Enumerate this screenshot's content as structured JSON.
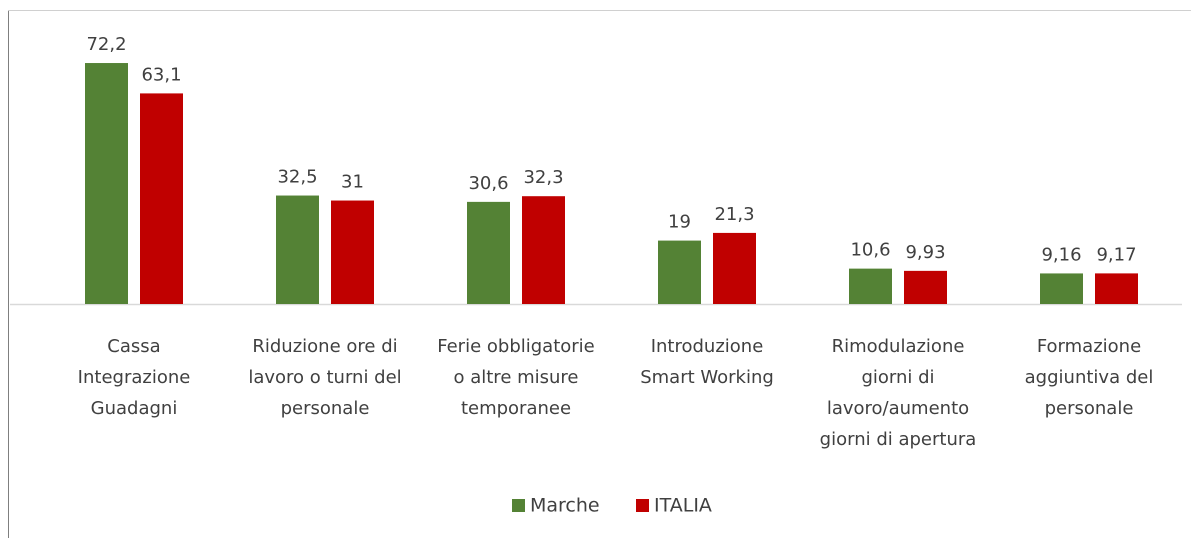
{
  "chart_data": {
    "type": "bar",
    "categories": [
      [
        "Cassa",
        "Integrazione",
        "Guadagni"
      ],
      [
        "Riduzione ore di",
        "lavoro o turni del",
        "personale"
      ],
      [
        "Ferie obbligatorie",
        "o altre misure",
        "temporanee"
      ],
      [
        "Introduzione",
        "Smart Working"
      ],
      [
        "Rimodulazione",
        "giorni di",
        "lavoro/aumento",
        "giorni di apertura"
      ],
      [
        "Formazione",
        "aggiuntiva del",
        "personale"
      ]
    ],
    "series": [
      {
        "name": "Marche",
        "color": "#548235",
        "values": [
          72.2,
          32.5,
          30.6,
          19,
          10.6,
          9.16
        ],
        "value_labels": [
          "72,2",
          "32,5",
          "30,6",
          "19",
          "10,6",
          "9,16"
        ]
      },
      {
        "name": "ITALIA",
        "color": "#c00000",
        "values": [
          63.1,
          31,
          32.3,
          21.3,
          9.93,
          9.17
        ],
        "value_labels": [
          "63,1",
          "31",
          "32,3",
          "21,3",
          "9,93",
          "9,17"
        ]
      }
    ],
    "ylim": [
      0,
      80
    ],
    "legend": "bottom"
  }
}
